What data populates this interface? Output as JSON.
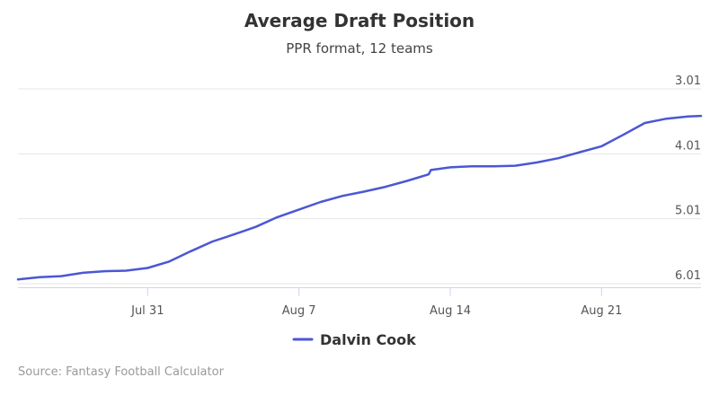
{
  "chart_data": {
    "type": "line",
    "title": "Average Draft Position",
    "subtitle": "PPR format, 12 teams",
    "xlabel": "",
    "ylabel": "",
    "x_ticks": [
      {
        "label": "Jul 31",
        "day": 10
      },
      {
        "label": "Aug 7",
        "day": 17
      },
      {
        "label": "Aug 14",
        "day": 24
      },
      {
        "label": "Aug 21",
        "day": 31
      }
    ],
    "y_ticks": [
      {
        "label": "3.01",
        "value": 25
      },
      {
        "label": "4.01",
        "value": 37
      },
      {
        "label": "5.01",
        "value": 49
      },
      {
        "label": "6.01",
        "value": 61
      }
    ],
    "y_reversed": true,
    "xlim": [
      4,
      35.6
    ],
    "ylim": [
      25,
      61
    ],
    "grid": true,
    "legend_position": "bottom-center",
    "series": [
      {
        "name": "Dalvin Cook",
        "color": "#4b57d4",
        "points": [
          [
            4.0,
            60.2
          ],
          [
            5.0,
            59.8
          ],
          [
            6.0,
            59.6
          ],
          [
            7.0,
            59.0
          ],
          [
            8.0,
            58.7
          ],
          [
            9.0,
            58.6
          ],
          [
            10.0,
            58.1
          ],
          [
            11.0,
            56.9
          ],
          [
            12.0,
            55.0
          ],
          [
            13.0,
            53.2
          ],
          [
            14.0,
            51.9
          ],
          [
            15.0,
            50.5
          ],
          [
            16.0,
            48.7
          ],
          [
            17.0,
            47.3
          ],
          [
            18.0,
            45.9
          ],
          [
            19.0,
            44.8
          ],
          [
            20.0,
            44.0
          ],
          [
            21.0,
            43.1
          ],
          [
            22.0,
            42.0
          ],
          [
            23.0,
            40.8
          ],
          [
            23.1,
            40.0
          ],
          [
            24.0,
            39.5
          ],
          [
            25.0,
            39.3
          ],
          [
            26.0,
            39.3
          ],
          [
            27.0,
            39.2
          ],
          [
            28.0,
            38.6
          ],
          [
            29.0,
            37.8
          ],
          [
            30.0,
            36.7
          ],
          [
            31.0,
            35.6
          ],
          [
            32.0,
            33.5
          ],
          [
            33.0,
            31.3
          ],
          [
            34.0,
            30.5
          ],
          [
            35.0,
            30.1
          ],
          [
            35.6,
            30.0
          ]
        ]
      }
    ]
  },
  "credits": {
    "text": "Source: Fantasy Football Calculator"
  }
}
